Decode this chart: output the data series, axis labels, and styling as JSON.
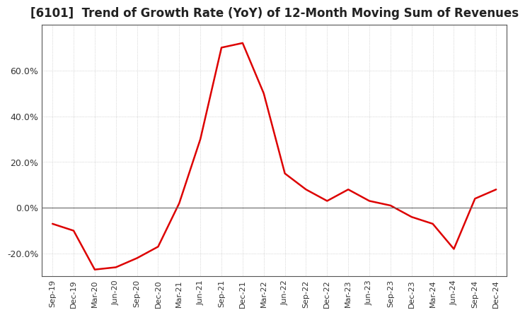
{
  "title": "[6101]  Trend of Growth Rate (YoY) of 12-Month Moving Sum of Revenues",
  "title_fontsize": 12,
  "line_color": "#dd0000",
  "background_color": "#ffffff",
  "grid_color": "#aaaaaa",
  "border_color": "#555555",
  "ylim": [
    -30,
    80
  ],
  "yticks": [
    -20.0,
    0.0,
    20.0,
    40.0,
    60.0
  ],
  "ytick_labels": [
    "-20.0%",
    "0.0%",
    "20.0%",
    "40.0%",
    "60.0%"
  ],
  "dates": [
    "Sep-19",
    "Dec-19",
    "Mar-20",
    "Jun-20",
    "Sep-20",
    "Dec-20",
    "Mar-21",
    "Jun-21",
    "Sep-21",
    "Dec-21",
    "Mar-22",
    "Jun-22",
    "Sep-22",
    "Dec-22",
    "Mar-23",
    "Jun-23",
    "Sep-23",
    "Dec-23",
    "Mar-24",
    "Jun-24",
    "Sep-24",
    "Dec-24"
  ],
  "values": [
    -7,
    -10,
    -27,
    -26,
    -22,
    -17,
    2,
    30,
    70,
    72,
    50,
    15,
    8,
    3,
    8,
    3,
    1,
    -4,
    -7,
    -18,
    4,
    8
  ]
}
